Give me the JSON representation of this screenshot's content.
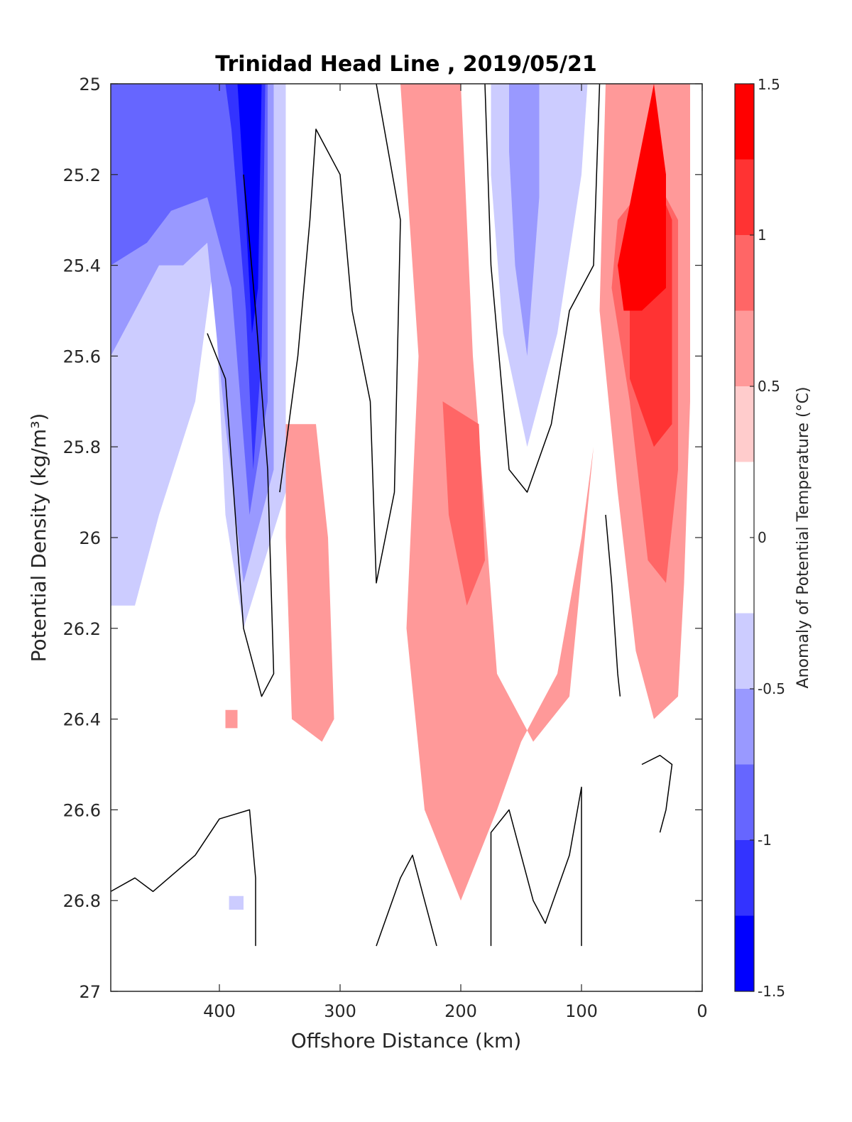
{
  "chart_data": {
    "type": "heatmap",
    "subtype": "filled-contour",
    "title": "Trinidad Head Line , 2019/05/21",
    "xlabel": "Offshore Distance (km)",
    "ylabel": "Potential Density (kg/m³)",
    "xlim": [
      490,
      0
    ],
    "x_reversed": true,
    "x_ticks": [
      400,
      300,
      200,
      100,
      0
    ],
    "ylim": [
      25,
      27
    ],
    "y_reversed": true,
    "y_ticks": [
      25,
      25.2,
      25.4,
      25.6,
      25.8,
      26,
      26.2,
      26.4,
      26.6,
      26.8,
      27
    ],
    "colorbar": {
      "label": "Anomaly of Potential Temperature (°C)",
      "range": [
        -1.5,
        1.5
      ],
      "ticks": [
        -1.5,
        -1,
        -0.5,
        0,
        0.5,
        1,
        1.5
      ],
      "levels": [
        -1.5,
        -1.25,
        -1,
        -0.75,
        -0.5,
        -0.25,
        0.25,
        0.5,
        0.75,
        1,
        1.25,
        1.5
      ],
      "colors": [
        "#0000ff",
        "#3333ff",
        "#6666ff",
        "#9999ff",
        "#ccccff",
        "#ffffff",
        "#ffcccc",
        "#ff9999",
        "#ff6666",
        "#ff3333",
        "#ff0000"
      ]
    },
    "grid": false,
    "filled_regions": [
      {
        "name": "offshore-cold-band",
        "level": -0.5,
        "points": [
          [
            490,
            25
          ],
          [
            345,
            25
          ],
          [
            345,
            25.9
          ],
          [
            380,
            26.2
          ],
          [
            395,
            25.95
          ],
          [
            405,
            25.4
          ],
          [
            420,
            25.7
          ],
          [
            450,
            25.95
          ],
          [
            470,
            26.15
          ],
          [
            490,
            26.15
          ]
        ]
      },
      {
        "name": "offshore-cold-core",
        "level": -0.75,
        "points": [
          [
            490,
            25
          ],
          [
            355,
            25
          ],
          [
            355,
            25.85
          ],
          [
            380,
            26.1
          ],
          [
            395,
            25.75
          ],
          [
            410,
            25.35
          ],
          [
            430,
            25.4
          ],
          [
            450,
            25.4
          ],
          [
            490,
            25.6
          ]
        ]
      },
      {
        "name": "offshore-cold-strong",
        "level": -1,
        "points": [
          [
            490,
            25
          ],
          [
            360,
            25
          ],
          [
            360,
            25.7
          ],
          [
            375,
            25.95
          ],
          [
            390,
            25.45
          ],
          [
            410,
            25.25
          ],
          [
            440,
            25.28
          ],
          [
            460,
            25.35
          ],
          [
            490,
            25.4
          ]
        ]
      },
      {
        "name": "offshore-cold-peak",
        "level": -1.25,
        "points": [
          [
            395,
            25
          ],
          [
            362,
            25
          ],
          [
            365,
            25.6
          ],
          [
            372,
            25.85
          ],
          [
            378,
            25.5
          ],
          [
            390,
            25.1
          ]
        ]
      },
      {
        "name": "offshore-cold-max",
        "level": -1.5,
        "points": [
          [
            385,
            25
          ],
          [
            365,
            25
          ],
          [
            368,
            25.45
          ],
          [
            373,
            25.55
          ],
          [
            378,
            25.3
          ]
        ]
      },
      {
        "name": "mid-cold-band",
        "level": -0.5,
        "points": [
          [
            175,
            25
          ],
          [
            95,
            25
          ],
          [
            100,
            25.2
          ],
          [
            120,
            25.55
          ],
          [
            145,
            25.8
          ],
          [
            165,
            25.55
          ],
          [
            175,
            25.2
          ]
        ]
      },
      {
        "name": "mid-cold-core",
        "level": -0.75,
        "points": [
          [
            160,
            25
          ],
          [
            135,
            25
          ],
          [
            135,
            25.25
          ],
          [
            145,
            25.6
          ],
          [
            155,
            25.4
          ],
          [
            160,
            25.15
          ]
        ]
      },
      {
        "name": "isolated-cold-patch",
        "level": -0.5,
        "points": [
          [
            392,
            26.79
          ],
          [
            380,
            26.79
          ],
          [
            380,
            26.82
          ],
          [
            392,
            26.82
          ]
        ]
      },
      {
        "name": "nearshore-warm-band",
        "level": 0.5,
        "points": [
          [
            80,
            25
          ],
          [
            10,
            25
          ],
          [
            10,
            25.7
          ],
          [
            15,
            26.1
          ],
          [
            20,
            26.35
          ],
          [
            40,
            26.4
          ],
          [
            55,
            26.25
          ],
          [
            70,
            25.9
          ],
          [
            85,
            25.5
          ]
        ]
      },
      {
        "name": "nearshore-warm-core",
        "level": 0.75,
        "points": [
          [
            70,
            25.3
          ],
          [
            40,
            25.2
          ],
          [
            20,
            25.3
          ],
          [
            20,
            25.85
          ],
          [
            30,
            26.1
          ],
          [
            45,
            26.05
          ],
          [
            60,
            25.7
          ],
          [
            75,
            25.45
          ]
        ]
      },
      {
        "name": "nearshore-warm-strong",
        "level": 1,
        "points": [
          [
            60,
            25.4
          ],
          [
            40,
            25.2
          ],
          [
            25,
            25.3
          ],
          [
            25,
            25.75
          ],
          [
            40,
            25.8
          ],
          [
            60,
            25.65
          ]
        ]
      },
      {
        "name": "nearshore-warm-max",
        "level": 1.25,
        "points": [
          [
            70,
            25.4
          ],
          [
            40,
            25
          ],
          [
            30,
            25.2
          ],
          [
            30,
            25.45
          ],
          [
            50,
            25.5
          ],
          [
            65,
            25.5
          ]
        ]
      },
      {
        "name": "mid-warm-band",
        "level": 0.5,
        "points": [
          [
            250,
            25
          ],
          [
            200,
            25
          ],
          [
            190,
            25.6
          ],
          [
            170,
            26.3
          ],
          [
            140,
            26.45
          ],
          [
            110,
            26.35
          ],
          [
            90,
            25.8
          ],
          [
            100,
            26.0
          ],
          [
            120,
            26.3
          ],
          [
            150,
            26.45
          ],
          [
            170,
            26.6
          ],
          [
            200,
            26.8
          ],
          [
            230,
            26.6
          ],
          [
            245,
            26.2
          ],
          [
            235,
            25.6
          ]
        ]
      },
      {
        "name": "mid-warm-core",
        "level": 0.75,
        "points": [
          [
            215,
            25.7
          ],
          [
            185,
            25.75
          ],
          [
            180,
            26.05
          ],
          [
            195,
            26.15
          ],
          [
            210,
            25.95
          ]
        ]
      },
      {
        "name": "inner-warm-patch",
        "level": 0.5,
        "points": [
          [
            345,
            25.75
          ],
          [
            320,
            25.75
          ],
          [
            310,
            26.0
          ],
          [
            305,
            26.4
          ],
          [
            315,
            26.45
          ],
          [
            340,
            26.4
          ],
          [
            345,
            26.0
          ]
        ]
      },
      {
        "name": "small-warm-patch",
        "level": 0.5,
        "points": [
          [
            395,
            26.38
          ],
          [
            385,
            26.38
          ],
          [
            385,
            26.42
          ],
          [
            395,
            26.42
          ]
        ]
      }
    ],
    "contour_lines": [
      {
        "name": "zero-contour-offshore-inner",
        "level": 0,
        "points": [
          [
            410,
            25.55
          ],
          [
            395,
            25.65
          ],
          [
            380,
            26.2
          ],
          [
            365,
            26.35
          ],
          [
            355,
            26.3
          ],
          [
            360,
            25.85
          ],
          [
            370,
            25.5
          ],
          [
            380,
            25.2
          ]
        ]
      },
      {
        "name": "zero-contour-central-wedge",
        "level": 0,
        "points": [
          [
            270,
            25.0
          ],
          [
            250,
            25.3
          ],
          [
            255,
            25.9
          ],
          [
            270,
            26.1
          ],
          [
            275,
            25.7
          ],
          [
            290,
            25.5
          ],
          [
            300,
            25.2
          ],
          [
            320,
            25.1
          ],
          [
            325,
            25.3
          ],
          [
            335,
            25.6
          ],
          [
            350,
            25.9
          ]
        ]
      },
      {
        "name": "zero-contour-deep-offshore",
        "level": 0,
        "points": [
          [
            490,
            26.78
          ],
          [
            470,
            26.75
          ],
          [
            455,
            26.78
          ],
          [
            420,
            26.7
          ],
          [
            400,
            26.62
          ],
          [
            375,
            26.6
          ],
          [
            370,
            26.75
          ],
          [
            370,
            26.9
          ]
        ]
      },
      {
        "name": "zero-contour-deep-mid",
        "level": 0,
        "points": [
          [
            270,
            26.9
          ],
          [
            250,
            26.75
          ],
          [
            240,
            26.7
          ],
          [
            220,
            26.9
          ]
        ]
      },
      {
        "name": "zero-contour-deep-inner",
        "level": 0,
        "points": [
          [
            175,
            26.9
          ],
          [
            175,
            26.65
          ],
          [
            160,
            26.6
          ],
          [
            140,
            26.8
          ],
          [
            130,
            26.85
          ],
          [
            110,
            26.7
          ],
          [
            100,
            26.55
          ],
          [
            100,
            26.9
          ]
        ]
      },
      {
        "name": "zero-contour-mid-cold",
        "level": 0,
        "points": [
          [
            180,
            25.0
          ],
          [
            175,
            25.4
          ],
          [
            160,
            25.85
          ],
          [
            145,
            25.9
          ],
          [
            125,
            25.75
          ],
          [
            110,
            25.5
          ],
          [
            90,
            25.4
          ],
          [
            85,
            25.0
          ]
        ]
      },
      {
        "name": "zero-contour-nearshore",
        "level": 0,
        "points": [
          [
            80,
            25.95
          ],
          [
            75,
            26.1
          ],
          [
            70,
            26.3
          ],
          [
            68,
            26.35
          ]
        ]
      },
      {
        "name": "zero-contour-nearshore-deep",
        "level": 0,
        "points": [
          [
            50,
            26.5
          ],
          [
            35,
            26.48
          ],
          [
            25,
            26.5
          ],
          [
            30,
            26.6
          ],
          [
            35,
            26.65
          ]
        ]
      }
    ]
  }
}
